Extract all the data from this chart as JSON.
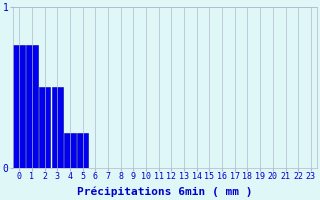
{
  "categories": [
    0,
    1,
    2,
    3,
    4,
    5,
    6,
    7,
    8,
    9,
    10,
    11,
    12,
    13,
    14,
    15,
    16,
    17,
    18,
    19,
    20,
    21,
    22,
    23
  ],
  "values": [
    0.76,
    0.76,
    0.5,
    0.5,
    0.22,
    0.22,
    0.0,
    0.0,
    0.0,
    0.0,
    0.0,
    0.0,
    0.0,
    0.0,
    0.0,
    0.0,
    0.0,
    0.0,
    0.0,
    0.0,
    0.0,
    0.0,
    0.0,
    0.0
  ],
  "bar_color": "#0000ee",
  "bar_edge_color": "#0000aa",
  "background_color": "#dff7f7",
  "grid_color": "#b0b8cc",
  "text_color": "#0000cc",
  "xlabel": "Précipitations 6min ( mm )",
  "ylim": [
    0,
    1.0
  ],
  "yticks": [
    0,
    1
  ],
  "xlabel_fontsize": 8,
  "tick_fontsize": 6
}
